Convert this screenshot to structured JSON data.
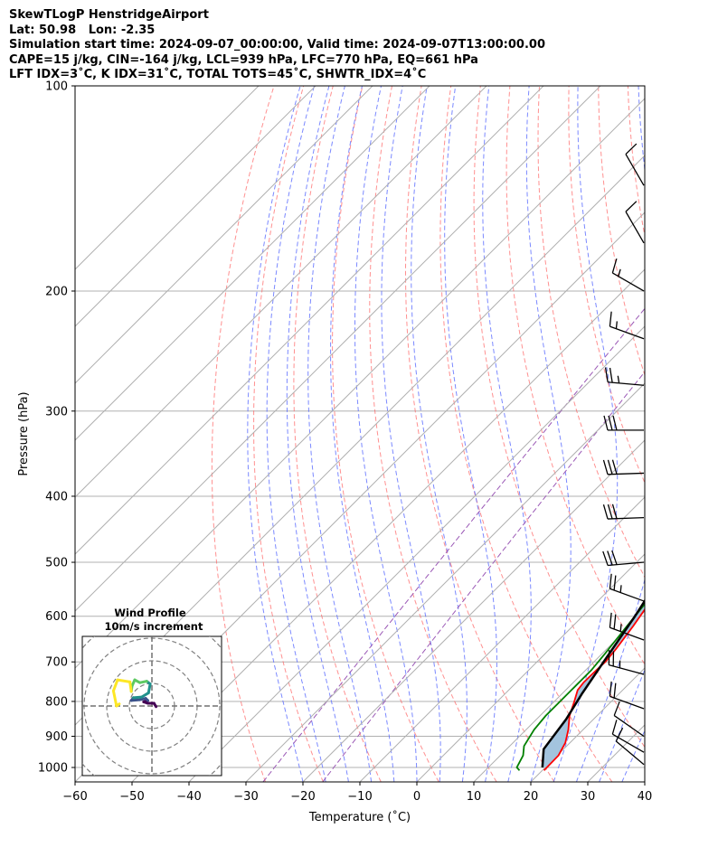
{
  "header": {
    "line1": "SkewTLogP HenstridgeAirport",
    "line2": "Lat: 50.98   Lon: -2.35",
    "line3": "Simulation start time: 2024-09-07_00:00:00, Valid time: 2024-09-07T13:00:00.00",
    "line4": "CAPE=15 j/kg, CIN=-164 j/kg, LCL=939 hPa, LFC=770 hPa, EQ=661 hPa",
    "line5": "LFT IDX=3˚C, K IDX=31˚C, TOTAL TOTS=45˚C, SHWTR_IDX=4˚C"
  },
  "chart_data": {
    "type": "line",
    "xlabel": "Temperature (˚C)",
    "ylabel": "Pressure (hPa)",
    "xlim": [
      -60,
      40
    ],
    "ylim": [
      1050,
      100
    ],
    "y_scale": "log",
    "x_ticks": [
      "−60",
      "−50",
      "−40",
      "−30",
      "−20",
      "−10",
      "0",
      "10",
      "20",
      "30",
      "40"
    ],
    "x_tick_values": [
      -60,
      -50,
      -40,
      -30,
      -20,
      -10,
      0,
      10,
      20,
      30,
      40
    ],
    "y_ticks": [
      "100",
      "200",
      "300",
      "400",
      "500",
      "600",
      "700",
      "800",
      "900",
      "1000"
    ],
    "y_tick_values": [
      100,
      200,
      300,
      400,
      500,
      600,
      700,
      800,
      900,
      1000
    ],
    "grid": true,
    "colors": {
      "temperature": "#ff0000",
      "dewpoint": "#008000",
      "parcel": "#000000",
      "shade": "#a3c4de",
      "dry_adiabat": "#ff6b6b",
      "moist_adiabat": "#5a6cff",
      "mixing_ratio": "#9b59b6"
    },
    "series": [
      {
        "key": "temperature",
        "x": [
          20.3,
          20.2,
          19.2,
          17.4,
          15.2,
          13.5,
          12.1,
          11.8,
          11.9,
          12.0,
          11.6,
          10.6,
          9.0,
          6.2,
          2.1,
          -2.5,
          -5.5,
          -8.9,
          -12.0,
          -9.3,
          -3.6,
          -2.5,
          -1.7,
          -0.6,
          1.2,
          3.6,
          4.3,
          5.3,
          8.5,
          12.5,
          15.0,
          18.0,
          18.5
        ],
        "y": [
          1010,
          960,
          920,
          880,
          840,
          800,
          770,
          750,
          720,
          700,
          670,
          620,
          560,
          480,
          420,
          350,
          310,
          280,
          260,
          240,
          220,
          210,
          195,
          185,
          180,
          175,
          165,
          160,
          148,
          136,
          125,
          110,
          100
        ]
      },
      {
        "key": "dewpoint",
        "x": [
          16.0,
          15.0,
          14.0,
          12.5,
          11.4,
          11.0,
          11.0,
          11.0,
          11.0,
          10.5,
          9.5,
          8.5,
          7.0,
          5.0,
          1.0,
          -3.0,
          -6.5,
          -12.5,
          -13.5,
          -8.5,
          -11.0,
          -16.5,
          -20.2,
          -19.5,
          -21.0,
          -23.0,
          -23.0,
          -20.0,
          -16.8,
          -13.0,
          -7.0,
          -1.0,
          1.3
        ],
        "y": [
          1010,
          1000,
          960,
          930,
          880,
          840,
          800,
          770,
          720,
          680,
          620,
          560,
          510,
          470,
          400,
          340,
          300,
          265,
          250,
          240,
          225,
          214,
          200,
          190,
          180,
          170,
          160,
          150,
          140,
          130,
          118,
          106,
          100
        ]
      },
      {
        "key": "parcel",
        "x": [
          19.5,
          16.5,
          15.2,
          13.5,
          11.7,
          9.2,
          5.8,
          1.3,
          -4.4,
          -11.2,
          -19.3,
          -28.5,
          -39.0
        ],
        "y": [
          1000,
          940,
          850,
          780,
          700,
          600,
          500,
          400,
          320,
          260,
          200,
          160,
          100
        ]
      }
    ],
    "wind_barbs": [
      {
        "p": 140,
        "speed_kt": 10,
        "dir_deg": 330
      },
      {
        "p": 170,
        "speed_kt": 10,
        "dir_deg": 330
      },
      {
        "p": 200,
        "speed_kt": 15,
        "dir_deg": 300
      },
      {
        "p": 235,
        "speed_kt": 15,
        "dir_deg": 290
      },
      {
        "p": 275,
        "speed_kt": 25,
        "dir_deg": 275
      },
      {
        "p": 320,
        "speed_kt": 30,
        "dir_deg": 270
      },
      {
        "p": 370,
        "speed_kt": 30,
        "dir_deg": 268
      },
      {
        "p": 430,
        "speed_kt": 30,
        "dir_deg": 268
      },
      {
        "p": 500,
        "speed_kt": 30,
        "dir_deg": 265
      },
      {
        "p": 570,
        "speed_kt": 25,
        "dir_deg": 290
      },
      {
        "p": 650,
        "speed_kt": 25,
        "dir_deg": 290
      },
      {
        "p": 730,
        "speed_kt": 25,
        "dir_deg": 285
      },
      {
        "p": 820,
        "speed_kt": 20,
        "dir_deg": 290
      },
      {
        "p": 900,
        "speed_kt": 10,
        "dir_deg": 305
      },
      {
        "p": 950,
        "speed_kt": 10,
        "dir_deg": 300
      },
      {
        "p": 990,
        "speed_kt": 10,
        "dir_deg": 310
      }
    ],
    "inset": {
      "title": "Wind Profile",
      "subtitle": "10m/s increment",
      "hodograph_u": [
        1.2,
        0.6,
        -1.2,
        -2.4,
        -1.2,
        -1.8,
        -3.6,
        -6.0,
        -5.4,
        -3.0,
        -1.0,
        -0.5,
        -1.5,
        -3.5,
        -5.0,
        -5.8,
        -6.0,
        -6.4,
        -10.0,
        -11.2,
        -10.3,
        -9.5
      ],
      "hodograph_v": [
        -0.2,
        0.8,
        0.8,
        1.2,
        1.6,
        2.2,
        1.8,
        1.6,
        2.4,
        2.6,
        3.8,
        6.4,
        7.2,
        6.8,
        7.6,
        5.8,
        4.2,
        7.0,
        7.6,
        4.4,
        0.0,
        0.6
      ],
      "colormap": [
        "#440154",
        "#3b528b",
        "#21918c",
        "#5ec962",
        "#fde725"
      ]
    }
  }
}
